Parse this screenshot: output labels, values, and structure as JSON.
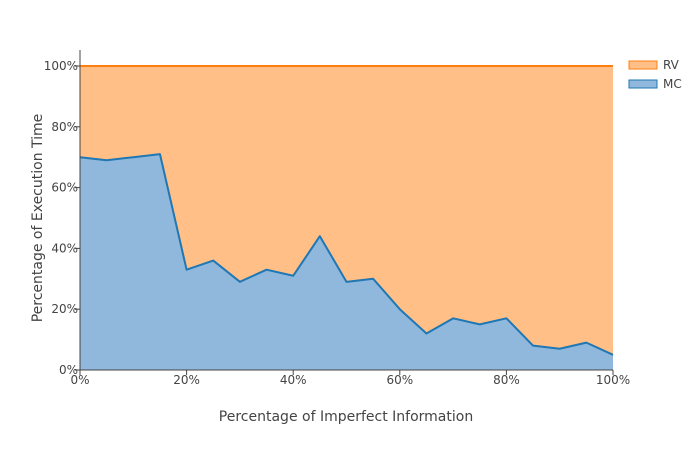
{
  "chart_data": {
    "type": "area",
    "stacked": true,
    "normalized": true,
    "xlabel": "Percentage of Imperfect Information",
    "ylabel": "Percentage of Execution Time",
    "xlim": [
      0,
      100
    ],
    "ylim": [
      0,
      100
    ],
    "x_ticks": [
      "0%",
      "20%",
      "40%",
      "60%",
      "80%",
      "100%"
    ],
    "y_ticks": [
      "0%",
      "20%",
      "40%",
      "60%",
      "80%",
      "100%"
    ],
    "x": [
      0,
      5,
      10,
      15,
      20,
      25,
      30,
      35,
      40,
      45,
      50,
      55,
      60,
      65,
      70,
      75,
      80,
      85,
      90,
      95,
      100
    ],
    "series": [
      {
        "name": "MC",
        "color": "#8fb8dc",
        "line_color": "#1f77b4",
        "values": [
          70,
          69,
          70,
          71,
          33,
          36,
          29,
          33,
          31,
          44,
          29,
          30,
          20,
          12,
          17,
          15,
          17,
          8,
          7,
          9,
          5
        ]
      },
      {
        "name": "RV",
        "color": "#ffbf86",
        "line_color": "#ff7f0e",
        "values": [
          30,
          31,
          30,
          29,
          67,
          64,
          71,
          67,
          69,
          56,
          71,
          70,
          80,
          88,
          83,
          85,
          83,
          92,
          93,
          91,
          95
        ]
      }
    ],
    "legend": {
      "placement": "top-right",
      "order": [
        "RV",
        "MC"
      ]
    },
    "grid": false
  }
}
